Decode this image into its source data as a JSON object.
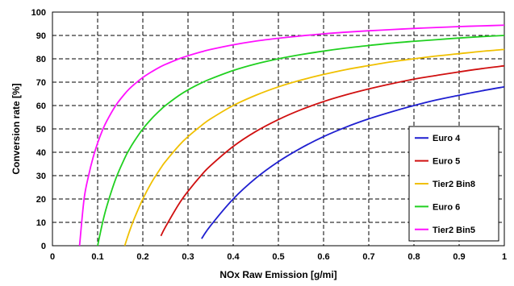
{
  "chart_data": {
    "type": "line",
    "xlabel": "NOx Raw Emission [g/mi]",
    "ylabel": "Conversion rate [%]",
    "xlim": [
      0,
      1
    ],
    "ylim": [
      0,
      100
    ],
    "xticks": [
      "0",
      "0.1",
      "0.2",
      "0.3",
      "0.4",
      "0.5",
      "0.6",
      "0.7",
      "0.8",
      "0.9",
      "1"
    ],
    "yticks": [
      "0",
      "10",
      "20",
      "30",
      "40",
      "50",
      "60",
      "70",
      "80",
      "90",
      "100"
    ],
    "grid": true,
    "legend_position": "right",
    "x": [
      0.05,
      0.06,
      0.07,
      0.08,
      0.09,
      0.1,
      0.11,
      0.12,
      0.14,
      0.16,
      0.17,
      0.18,
      0.2,
      0.22,
      0.24,
      0.25,
      0.28,
      0.3,
      0.33,
      0.35,
      0.4,
      0.45,
      0.5,
      0.55,
      0.6,
      0.65,
      0.7,
      0.75,
      0.8,
      0.85,
      0.9,
      0.95,
      1.0
    ],
    "series": [
      {
        "name": "Euro 4",
        "color": "#1f1fd0",
        "target": 0.32,
        "values": [
          null,
          null,
          null,
          null,
          null,
          null,
          null,
          null,
          null,
          null,
          null,
          null,
          null,
          null,
          null,
          null,
          null,
          null,
          3.0,
          8.6,
          20.0,
          28.9,
          36.0,
          41.8,
          46.7,
          50.8,
          54.3,
          57.3,
          60.0,
          62.4,
          64.4,
          66.3,
          68.0
        ]
      },
      {
        "name": "Euro 5",
        "color": "#d01010",
        "target": 0.23,
        "values": [
          null,
          null,
          null,
          null,
          null,
          null,
          null,
          null,
          null,
          null,
          null,
          null,
          null,
          null,
          4.2,
          8.0,
          17.9,
          23.3,
          30.3,
          34.3,
          42.5,
          48.9,
          54.0,
          58.2,
          61.7,
          64.6,
          67.1,
          69.3,
          71.3,
          72.9,
          74.4,
          75.8,
          77.0
        ]
      },
      {
        "name": "Tier2 Bin8",
        "color": "#f0c000",
        "target": 0.16,
        "values": [
          null,
          null,
          null,
          null,
          null,
          null,
          null,
          null,
          null,
          0.0,
          5.9,
          11.1,
          20.0,
          27.3,
          33.3,
          36.0,
          42.9,
          46.7,
          51.5,
          54.3,
          60.0,
          64.4,
          68.0,
          70.9,
          73.3,
          75.4,
          77.1,
          78.7,
          80.0,
          81.2,
          82.2,
          83.2,
          84.0
        ]
      },
      {
        "name": "Euro 6",
        "color": "#20d020",
        "target": 0.1,
        "values": [
          null,
          null,
          null,
          null,
          null,
          0.0,
          9.1,
          16.7,
          28.6,
          37.5,
          41.2,
          44.4,
          50.0,
          54.5,
          58.3,
          60.0,
          64.3,
          66.7,
          69.7,
          71.4,
          75.0,
          77.8,
          80.0,
          81.8,
          83.3,
          84.6,
          85.7,
          86.7,
          87.5,
          88.2,
          88.9,
          89.5,
          90.0
        ]
      },
      {
        "name": "Tier2 Bin5",
        "color": "#ff10ff",
        "target": 0.056,
        "values": [
          null,
          0.0,
          20.0,
          30.0,
          37.8,
          44.0,
          49.1,
          53.3,
          60.0,
          65.0,
          67.1,
          68.9,
          72.0,
          74.5,
          76.7,
          77.6,
          80.0,
          81.3,
          83.0,
          84.0,
          86.0,
          87.6,
          88.8,
          89.8,
          90.7,
          91.4,
          92.0,
          92.5,
          93.0,
          93.4,
          93.8,
          94.1,
          94.4
        ]
      }
    ]
  }
}
